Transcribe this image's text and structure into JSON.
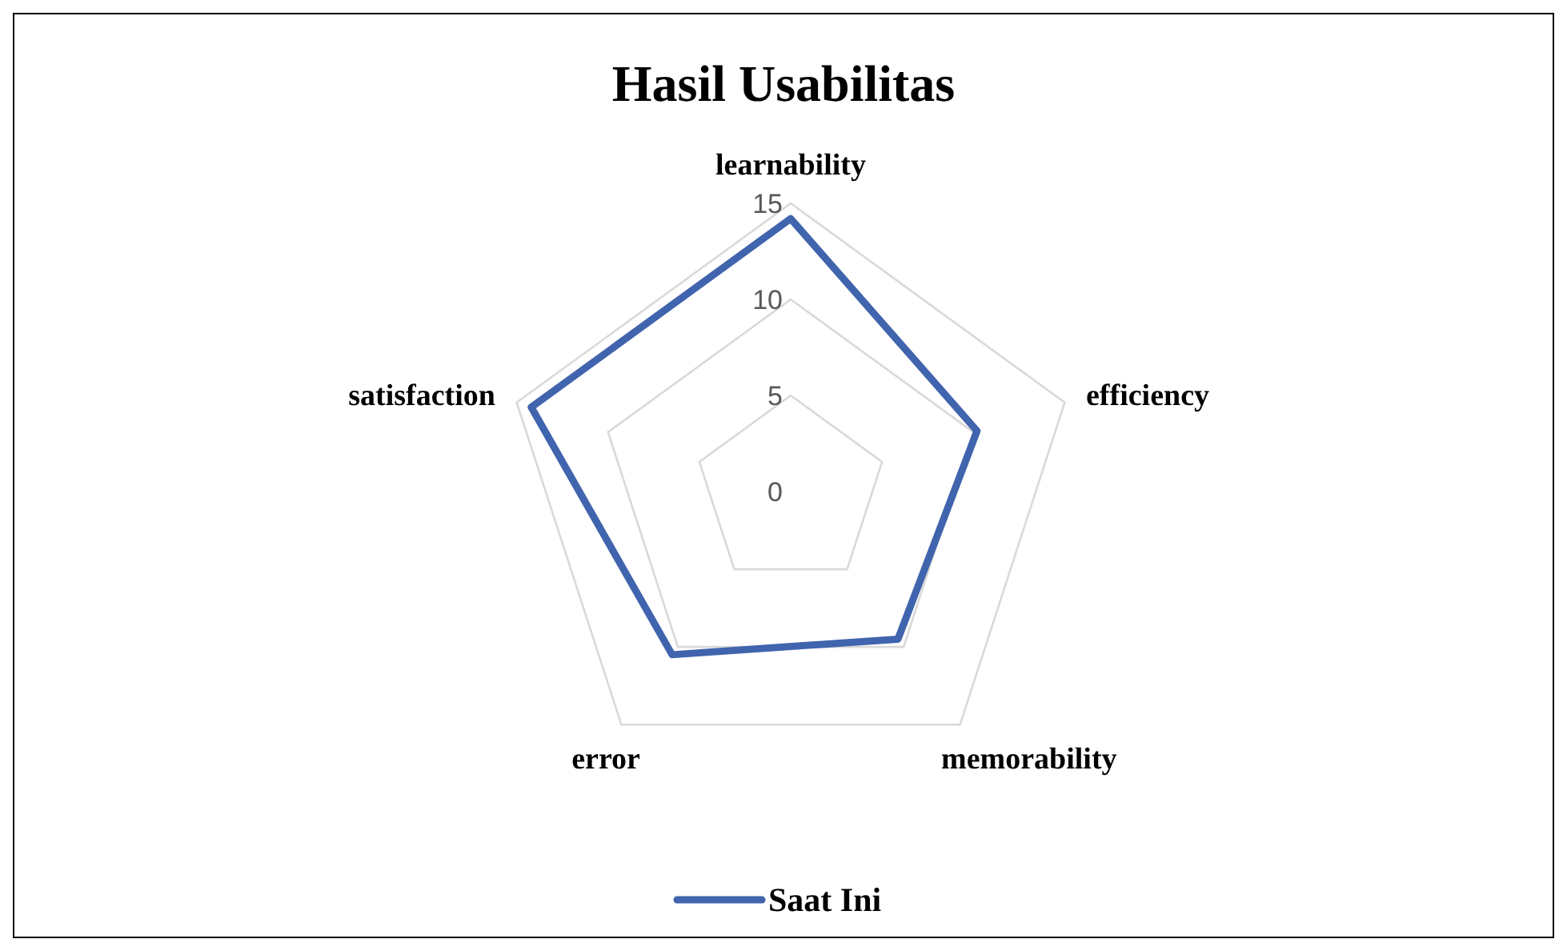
{
  "chart_data": {
    "type": "radar",
    "title": "Hasil Usabilitas",
    "categories": [
      "learnability",
      "efficiency",
      "memorability",
      "error",
      "satisfaction"
    ],
    "series": [
      {
        "name": "Saat Ini",
        "color": "#4064ad",
        "values": [
          14.2,
          10.2,
          9.5,
          10.5,
          14.2
        ]
      }
    ],
    "ylim": [
      0,
      15
    ],
    "yticks": [
      0,
      5,
      10,
      15
    ],
    "grid": true,
    "legend": "bottom",
    "marker": "none"
  }
}
